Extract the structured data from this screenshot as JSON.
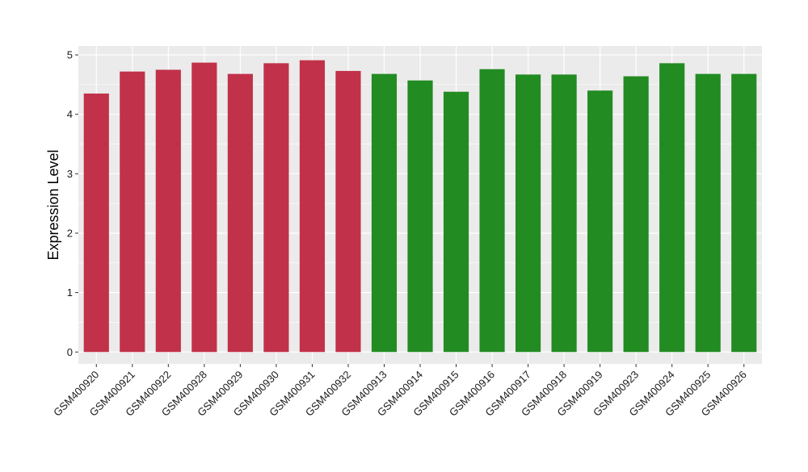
{
  "chart_data": {
    "type": "bar",
    "title": "",
    "xlabel": "",
    "ylabel": "Expression Level",
    "ylim": [
      -0.2,
      5.15
    ],
    "yticks": [
      0,
      1,
      2,
      3,
      4,
      5
    ],
    "grid": true,
    "panel_background": "#EBEBEB",
    "grid_color": "#FFFFFF",
    "categories": [
      "GSM400920",
      "GSM400921",
      "GSM400922",
      "GSM400928",
      "GSM400929",
      "GSM400930",
      "GSM400931",
      "GSM400932",
      "GSM400913",
      "GSM400914",
      "GSM400915",
      "GSM400916",
      "GSM400917",
      "GSM400918",
      "GSM400919",
      "GSM400923",
      "GSM400924",
      "GSM400925",
      "GSM400926"
    ],
    "values": [
      4.35,
      4.72,
      4.75,
      4.87,
      4.68,
      4.86,
      4.91,
      4.73,
      4.68,
      4.57,
      4.38,
      4.76,
      4.67,
      4.67,
      4.4,
      4.64,
      4.86,
      4.68,
      4.68
    ],
    "bar_colors": [
      "#C1314A",
      "#C1314A",
      "#C1314A",
      "#C1314A",
      "#C1314A",
      "#C1314A",
      "#C1314A",
      "#C1314A",
      "#228B22",
      "#228B22",
      "#228B22",
      "#228B22",
      "#228B22",
      "#228B22",
      "#228B22",
      "#228B22",
      "#228B22",
      "#228B22",
      "#228B22"
    ]
  }
}
